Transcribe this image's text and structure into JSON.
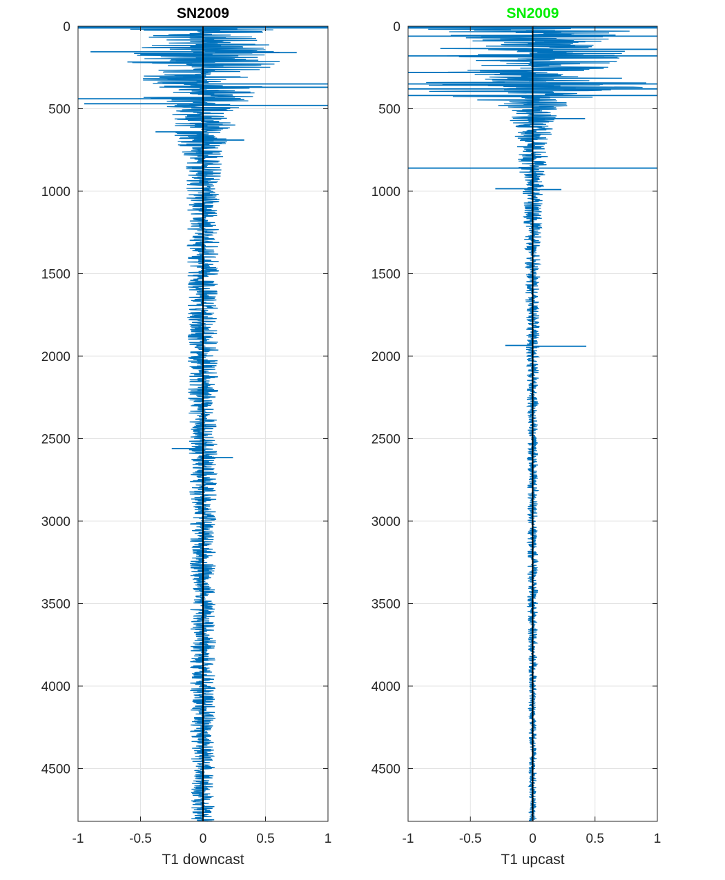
{
  "figure": {
    "colors": {
      "series": "#0072BD",
      "zero_line": "#000000",
      "axes": "#262626",
      "grid": "#e3e3e3",
      "title_left": "#000000",
      "title_right": "#00ee00"
    }
  },
  "chart_data": [
    {
      "type": "line",
      "title": "SN2009",
      "xlabel": "T1 downcast",
      "ylabel": "",
      "xlim": [
        -1,
        1
      ],
      "ylim": [
        0,
        4820
      ],
      "y_reversed": true,
      "grid": true,
      "xticks": [
        -1,
        -0.5,
        0,
        0.5,
        1
      ],
      "xtick_labels": [
        "-1",
        "-0.5",
        "0",
        "0.5",
        "1"
      ],
      "yticks": [
        0,
        500,
        1000,
        1500,
        2000,
        2500,
        3000,
        3500,
        4000,
        4500
      ],
      "ytick_labels": [
        "0",
        "500",
        "1000",
        "1500",
        "2000",
        "2500",
        "3000",
        "3500",
        "4000",
        "4500"
      ],
      "vertical_reference_x": 0,
      "series": [
        {
          "values_description_points": "amplitude envelope (x = T1 anomaly, y = depth)",
          "envelope_depth": [
            0,
            50,
            100,
            150,
            200,
            250,
            300,
            350,
            400,
            450,
            500,
            600,
            700,
            800,
            1000,
            1500,
            2000,
            2500,
            3000,
            3500,
            4000,
            4500,
            4820
          ],
          "envelope_amplitude": [
            0.8,
            0.35,
            0.6,
            0.8,
            0.6,
            0.55,
            0.45,
            0.5,
            0.4,
            0.5,
            0.3,
            0.25,
            0.2,
            0.15,
            0.13,
            0.12,
            0.12,
            0.11,
            0.1,
            0.1,
            0.1,
            0.09,
            0.09
          ],
          "spikes": [
            {
              "y": 5,
              "x": 1.0
            },
            {
              "y": 10,
              "x": -1.0
            },
            {
              "y": 155,
              "x": -0.9
            },
            {
              "y": 160,
              "x": 0.75
            },
            {
              "y": 350,
              "x": 1.0
            },
            {
              "y": 370,
              "x": 1.0
            },
            {
              "y": 440,
              "x": -1.0
            },
            {
              "y": 470,
              "x": -0.95
            },
            {
              "y": 480,
              "x": 1.0
            },
            {
              "y": 640,
              "x": -0.38
            },
            {
              "y": 690,
              "x": 0.33
            },
            {
              "y": 2615,
              "x": 0.24
            },
            {
              "y": 2560,
              "x": -0.25
            }
          ]
        }
      ]
    },
    {
      "type": "line",
      "title": "SN2009",
      "xlabel": "T1 upcast",
      "ylabel": "",
      "xlim": [
        -1,
        1
      ],
      "ylim": [
        0,
        4820
      ],
      "y_reversed": true,
      "grid": true,
      "xticks": [
        -1,
        -0.5,
        0,
        0.5,
        1
      ],
      "xtick_labels": [
        "-1",
        "-0.5",
        "0",
        "0.5",
        "1"
      ],
      "yticks": [
        0,
        500,
        1000,
        1500,
        2000,
        2500,
        3000,
        3500,
        4000,
        4500
      ],
      "ytick_labels": [
        "0",
        "500",
        "1000",
        "1500",
        "2000",
        "2500",
        "3000",
        "3500",
        "4000",
        "4500"
      ],
      "vertical_reference_x": 0,
      "series": [
        {
          "envelope_depth": [
            0,
            50,
            100,
            150,
            200,
            250,
            300,
            350,
            400,
            450,
            500,
            600,
            700,
            800,
            1000,
            1500,
            2000,
            2500,
            3000,
            3500,
            4000,
            4500,
            4820
          ],
          "envelope_amplitude": [
            0.9,
            0.7,
            0.6,
            0.8,
            0.7,
            0.6,
            0.8,
            0.9,
            0.8,
            0.45,
            0.2,
            0.18,
            0.12,
            0.12,
            0.08,
            0.06,
            0.05,
            0.04,
            0.04,
            0.04,
            0.03,
            0.03,
            0.03
          ],
          "spikes": [
            {
              "y": 5,
              "x": 1.0
            },
            {
              "y": 10,
              "x": -1.0
            },
            {
              "y": 60,
              "x": -1.0
            },
            {
              "y": 60,
              "x": 1.0
            },
            {
              "y": 140,
              "x": 1.0
            },
            {
              "y": 180,
              "x": 1.0
            },
            {
              "y": 180,
              "x": -1.0
            },
            {
              "y": 280,
              "x": -1.0
            },
            {
              "y": 350,
              "x": -1.0
            },
            {
              "y": 350,
              "x": 1.0
            },
            {
              "y": 380,
              "x": 1.0
            },
            {
              "y": 380,
              "x": -1.0
            },
            {
              "y": 420,
              "x": -1.0
            },
            {
              "y": 420,
              "x": 1.0
            },
            {
              "y": 860,
              "x": 1.0
            },
            {
              "y": 860,
              "x": -1.0
            },
            {
              "y": 560,
              "x": 0.42
            },
            {
              "y": 1940,
              "x": 0.43
            },
            {
              "y": 1935,
              "x": -0.22
            },
            {
              "y": 985,
              "x": -0.3
            },
            {
              "y": 990,
              "x": 0.23
            }
          ]
        }
      ]
    }
  ]
}
